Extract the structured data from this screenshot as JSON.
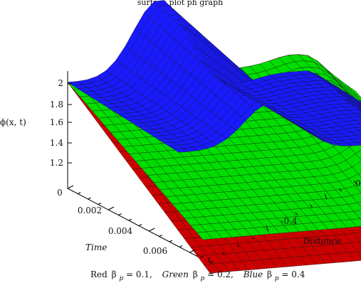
{
  "chart_data": {
    "type": "surface3d",
    "title": "surface plot ph graph",
    "zlabel": "ϕ(x,  t)",
    "xlabel": "Time",
    "ylabel": "Distance",
    "z_ticks": [
      "2",
      "1.8",
      "1.6",
      "1.4",
      "1.2"
    ],
    "time_ticks": [
      "0",
      "0.002",
      "0.004",
      "0.006"
    ],
    "distance_ticks": [
      "0",
      "0.4"
    ],
    "ranges": {
      "time": [
        0,
        0.007
      ],
      "distance": [
        0,
        0.5
      ],
      "z": [
        1.0,
        2.2
      ]
    },
    "grid": "surface mesh",
    "series": [
      {
        "name": "Red",
        "beta_p": "0.1",
        "color": "#cc0000"
      },
      {
        "name": "Green",
        "beta_p": "0.2",
        "color": "#00dd00"
      },
      {
        "name": "Blue",
        "beta_p": "0.4",
        "color": "#1a1aff"
      }
    ],
    "caption": {
      "red": {
        "label": "Red",
        "symbol": "β",
        "sub": "p",
        "value": " = 0.1,"
      },
      "green": {
        "label": "Green",
        "symbol": "β",
        "sub": "p",
        "value": " = 0.2,"
      },
      "blue": {
        "label": "Blue",
        "symbol": "β",
        "sub": "p",
        "value": " = 0.4"
      }
    }
  }
}
